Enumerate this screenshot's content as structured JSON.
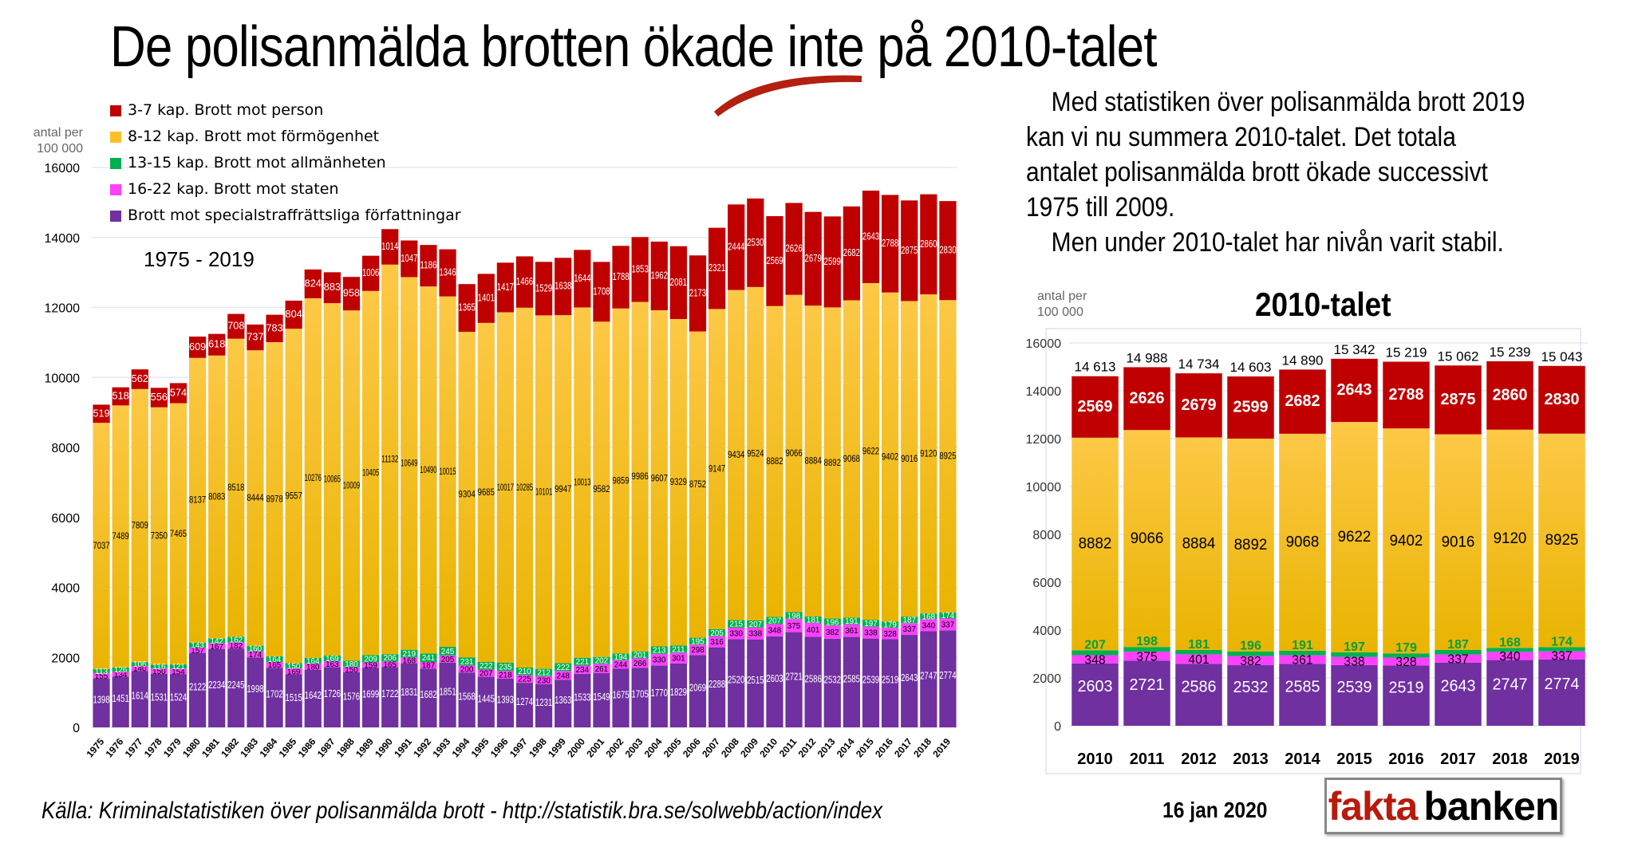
{
  "title": "De polisanmälda brotten ökade inte på 2010-talet",
  "legend": [
    {
      "label": "3-7 kap. Brott mot person",
      "color": "#c00000"
    },
    {
      "label": "8-12 kap. Brott mot förmögenhet",
      "color": "#fdc128"
    },
    {
      "label": "13-15 kap. Brott mot allmänheten",
      "color": "#00b050"
    },
    {
      "label": "16-22 kap. Brott mot staten",
      "color": "#ff40ff"
    },
    {
      "label": "Brott mot specialstraffrättsliga författningar",
      "color": "#7030a0"
    }
  ],
  "unit_label_line1": "antal per",
  "unit_label_line2": "100 000",
  "period_label": "1975 - 2019",
  "body_text": {
    "line1": "Med statistiken över polisanmälda brott 2019",
    "line2": "kan vi nu summera 2010-talet. Det totala",
    "line3": "antalet polisanmälda brott ökade successivt",
    "line4": "1975 till 2009.",
    "line5": "Men under 2010-talet har nivån varit stabil."
  },
  "subtitle": "2010-talet",
  "source": "Källa: Kriminalstatistiken över polisanmälda brott - http://statistik.bra.se/solwebb/action/index",
  "date": "16 jan 2020",
  "logo": {
    "part1": "fakta",
    "part2": "banken"
  },
  "chart_data": [
    {
      "type": "bar",
      "stacked": true,
      "title": "1975 - 2019",
      "ylabel": "antal per 100 000",
      "ylim": [
        0,
        16000
      ],
      "yticks": [
        0,
        2000,
        4000,
        6000,
        8000,
        10000,
        12000,
        14000,
        16000
      ],
      "grid": true,
      "legend_position": "top-left",
      "categories": [
        "1975",
        "1976",
        "1977",
        "1978",
        "1979",
        "1980",
        "1981",
        "1982",
        "1983",
        "1984",
        "1985",
        "1986",
        "1987",
        "1988",
        "1989",
        "1990",
        "1991",
        "1992",
        "1993",
        "1994",
        "1995",
        "1996",
        "1997",
        "1998",
        "1999",
        "2000",
        "2001",
        "2002",
        "2003",
        "2004",
        "2005",
        "2006",
        "2007",
        "2008",
        "2009",
        "2010",
        "2011",
        "2012",
        "2013",
        "2014",
        "2015",
        "2016",
        "2017",
        "2018",
        "2019"
      ],
      "series": [
        {
          "name": "Brott mot specialstraffrättsliga författningar",
          "color": "#7030a0",
          "values": [
            1398,
            1451,
            1614,
            1531,
            1524,
            2122,
            2234,
            2245,
            1998,
            1702,
            1515,
            1642,
            1726,
            1576,
            1699,
            1722,
            1831,
            1682,
            1851,
            1568,
            1445,
            1393,
            1274,
            1231,
            1363,
            1533,
            1549,
            1675,
            1705,
            1770,
            1829,
            2069,
            2288,
            2520,
            2515,
            2603,
            2721,
            2586,
            2532,
            2585,
            2539,
            2519,
            2643,
            2747,
            2774
          ]
        },
        {
          "name": "16-22 kap. Brott mot staten",
          "color": "#ff40ff",
          "values": [
            155,
            134,
            140,
            150,
            154,
            157,
            167,
            182,
            174,
            165,
            169,
            180,
            163,
            150,
            159,
            165,
            168,
            187,
            205,
            200,
            207,
            218,
            225,
            230,
            248,
            234,
            261,
            244,
            266,
            330,
            301,
            298,
            316,
            330,
            338,
            348,
            375,
            401,
            382,
            361,
            338,
            328,
            337,
            340,
            337
          ]
        },
        {
          "name": "13-15 kap. Brott mot allmänheten",
          "color": "#00b050",
          "values": [
            113,
            126,
            106,
            116,
            121,
            143,
            142,
            162,
            160,
            164,
            150,
            164,
            169,
            180,
            209,
            206,
            219,
            241,
            245,
            231,
            222,
            235,
            210,
            212,
            222,
            221,
            202,
            194,
            201,
            213,
            211,
            195,
            205,
            215,
            207,
            207,
            198,
            181,
            196,
            191,
            197,
            179,
            187,
            168,
            174
          ]
        },
        {
          "name": "8-12 kap. Brott mot förmögenhet",
          "color": "#fdc128",
          "values": [
            7037,
            7489,
            7809,
            7350,
            7465,
            8137,
            8083,
            8518,
            8444,
            8978,
            9557,
            10276,
            10065,
            10009,
            10405,
            11132,
            10649,
            10490,
            10015,
            9304,
            9685,
            10017,
            10285,
            10101,
            9947,
            10013,
            9582,
            9859,
            9986,
            9607,
            9329,
            8752,
            9147,
            9434,
            9524,
            8882,
            9066,
            8884,
            8892,
            9068,
            9622,
            9402,
            9016,
            9120,
            8925
          ]
        },
        {
          "name": "3-7 kap. Brott mot person",
          "color": "#c00000",
          "values": [
            519,
            518,
            562,
            556,
            574,
            609,
            618,
            708,
            737,
            783,
            804,
            824,
            883,
            958,
            1006,
            1014,
            1047,
            1186,
            1346,
            1365,
            1401,
            1417,
            1466,
            1529,
            1638,
            1644,
            1708,
            1788,
            1853,
            1962,
            2081,
            2173,
            2321,
            2444,
            2530,
            2569,
            2626,
            2679,
            2599,
            2682,
            2643,
            2788,
            2875,
            2860,
            2830
          ]
        }
      ]
    },
    {
      "type": "bar",
      "stacked": true,
      "title": "2010-talet",
      "ylabel": "antal per 100 000",
      "ylim": [
        0,
        16000
      ],
      "yticks": [
        0,
        2000,
        4000,
        6000,
        8000,
        10000,
        12000,
        14000,
        16000
      ],
      "grid": true,
      "categories": [
        "2010",
        "2011",
        "2012",
        "2013",
        "2014",
        "2015",
        "2016",
        "2017",
        "2018",
        "2019"
      ],
      "totals": [
        "14 613",
        "14 988",
        "14 734",
        "14 603",
        "14 890",
        "15 342",
        "15 219",
        "15 062",
        "15 239",
        "15 043"
      ],
      "series": [
        {
          "name": "Brott mot specialstraffrättsliga författningar",
          "color": "#7030a0",
          "values": [
            2603,
            2721,
            2586,
            2532,
            2585,
            2539,
            2519,
            2643,
            2747,
            2774
          ]
        },
        {
          "name": "16-22 kap. Brott mot staten",
          "color": "#ff40ff",
          "values": [
            348,
            375,
            401,
            382,
            361,
            338,
            328,
            337,
            340,
            337
          ]
        },
        {
          "name": "13-15 kap. Brott mot allmänheten",
          "color": "#00b050",
          "values": [
            207,
            198,
            181,
            196,
            191,
            197,
            179,
            187,
            168,
            174
          ]
        },
        {
          "name": "8-12 kap. Brott mot förmögenhet",
          "color": "#fdc128",
          "values": [
            8882,
            9066,
            8884,
            8892,
            9068,
            9622,
            9402,
            9016,
            9120,
            8925
          ]
        },
        {
          "name": "3-7 kap. Brott mot person",
          "color": "#c00000",
          "values": [
            2569,
            2626,
            2679,
            2599,
            2682,
            2643,
            2788,
            2875,
            2860,
            2830
          ]
        }
      ]
    }
  ]
}
